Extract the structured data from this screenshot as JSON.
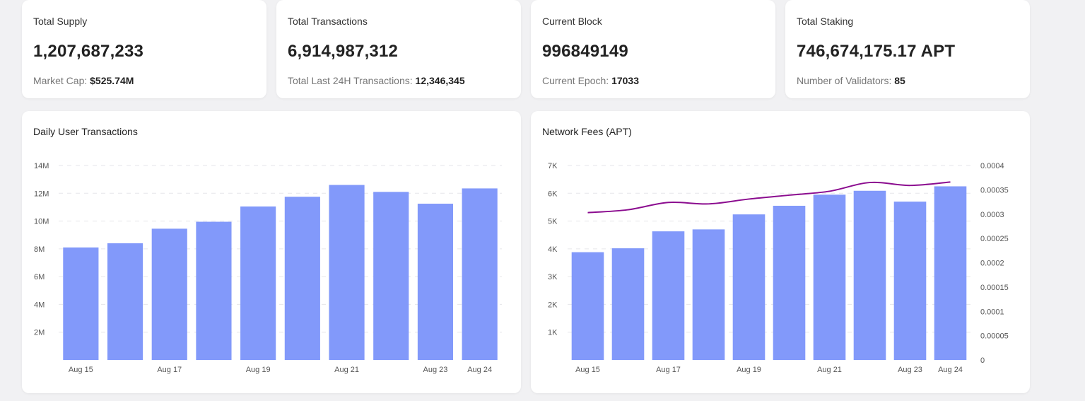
{
  "stats": [
    {
      "label": "Total Supply",
      "value": "1,207,687,233",
      "sub_label": "Market Cap:",
      "sub_value": "$525.74M"
    },
    {
      "label": "Total Transactions",
      "value": "6,914,987,312",
      "sub_label": "Total Last 24H Transactions:",
      "sub_value": "12,346,345"
    },
    {
      "label": "Current Block",
      "value": "996849149",
      "sub_label": "Current Epoch:",
      "sub_value": "17033"
    },
    {
      "label": "Total Staking",
      "value": "746,674,175.17 APT",
      "sub_label": "Number of Validators:",
      "sub_value": "85"
    }
  ],
  "colors": {
    "bar": "#8299fa",
    "line": "#8b0c8f",
    "grid": "#e6e6ea",
    "tick": "#555555"
  },
  "chart_data": [
    {
      "type": "bar",
      "title": "Daily User Transactions",
      "categories": [
        "Aug 15",
        "Aug 16",
        "Aug 17",
        "Aug 18",
        "Aug 19",
        "Aug 20",
        "Aug 21",
        "Aug 22",
        "Aug 23",
        "Aug 24"
      ],
      "x_tick_labels": [
        "Aug 15",
        "",
        "Aug 17",
        "",
        "Aug 19",
        "",
        "Aug 21",
        "",
        "Aug 23",
        "Aug 24"
      ],
      "values": [
        8100000,
        8400000,
        9450000,
        9950000,
        11050000,
        11750000,
        12600000,
        12100000,
        11250000,
        12350000
      ],
      "ylim": [
        0,
        14000000
      ],
      "y_ticks": [
        "",
        "2M",
        "4M",
        "6M",
        "8M",
        "10M",
        "12M",
        "14M"
      ],
      "grid": true
    },
    {
      "type": "bar",
      "title": "Network Fees (APT)",
      "categories": [
        "Aug 15",
        "Aug 16",
        "Aug 17",
        "Aug 18",
        "Aug 19",
        "Aug 20",
        "Aug 21",
        "Aug 22",
        "Aug 23",
        "Aug 24"
      ],
      "x_tick_labels": [
        "Aug 15",
        "",
        "Aug 17",
        "",
        "Aug 19",
        "",
        "Aug 21",
        "",
        "Aug 23",
        "Aug 24"
      ],
      "values": [
        3880,
        4020,
        4630,
        4700,
        5240,
        5550,
        5950,
        6090,
        5700,
        6250
      ],
      "ylim": [
        0,
        7000
      ],
      "y_ticks": [
        "",
        "1K",
        "2K",
        "3K",
        "4K",
        "5K",
        "6K",
        "7K"
      ],
      "line_values": [
        0.000303,
        0.000309,
        0.000324,
        0.000321,
        0.000331,
        0.000339,
        0.000347,
        0.000365,
        0.000359,
        0.000366
      ],
      "y2lim": [
        0,
        0.0004
      ],
      "y2_ticks": [
        "0",
        "0.00005",
        "0.0001",
        "0.00015",
        "0.0002",
        "0.00025",
        "0.0003",
        "0.00035",
        "0.0004"
      ],
      "grid": true
    }
  ]
}
